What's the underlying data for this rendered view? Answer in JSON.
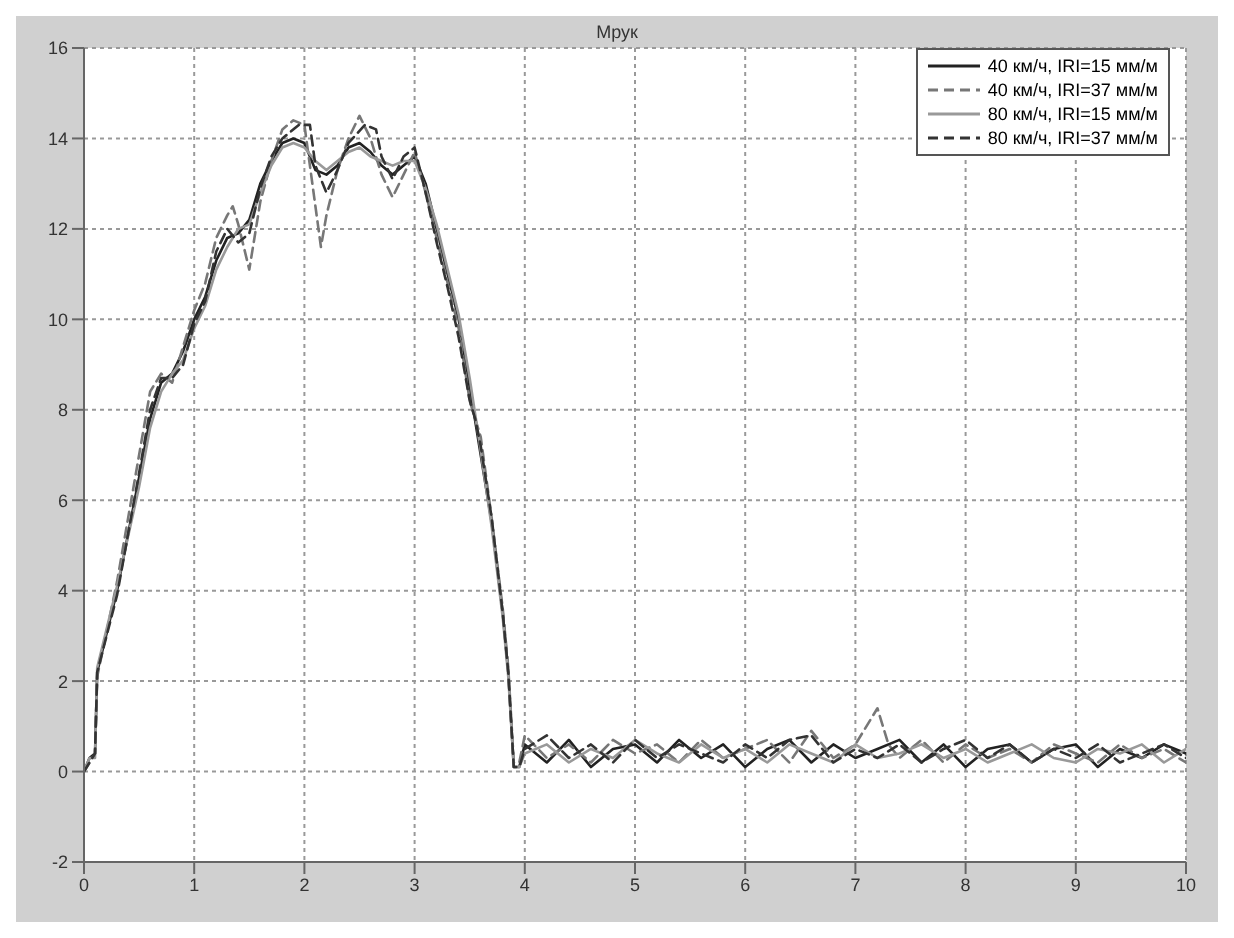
{
  "chart_data": {
    "type": "line",
    "title": "Мрук",
    "xlim": [
      0,
      10
    ],
    "ylim": [
      -2,
      16
    ],
    "xticks": [
      0,
      1,
      2,
      3,
      4,
      5,
      6,
      7,
      8,
      9,
      10
    ],
    "yticks": [
      -2,
      0,
      2,
      4,
      6,
      8,
      10,
      12,
      14,
      16
    ],
    "grid": true,
    "legend": "top right",
    "series": [
      {
        "name": "40 км/ч, IRI=15 мм/м",
        "color": "#222222",
        "line_style": "solid",
        "x": [
          0,
          0.05,
          0.1,
          0.12,
          0.3,
          0.5,
          0.6,
          0.7,
          0.8,
          0.9,
          1.0,
          1.1,
          1.2,
          1.3,
          1.4,
          1.5,
          1.6,
          1.7,
          1.8,
          1.9,
          2.0,
          2.1,
          2.2,
          2.3,
          2.4,
          2.5,
          2.6,
          2.7,
          2.8,
          2.9,
          3.0,
          3.1,
          3.2,
          3.3,
          3.4,
          3.5,
          3.6,
          3.7,
          3.8,
          3.85,
          3.9,
          3.95,
          4.0,
          4.2,
          4.4,
          4.6,
          4.8,
          5.0,
          5.2,
          5.4,
          5.6,
          5.8,
          6.0,
          6.2,
          6.4,
          6.6,
          6.8,
          7.0,
          7.2,
          7.4,
          7.6,
          7.8,
          8.0,
          8.2,
          8.4,
          8.6,
          8.8,
          9.0,
          9.2,
          9.4,
          9.6,
          9.8,
          10.0
        ],
        "values": [
          0,
          0.3,
          0.4,
          2.2,
          4,
          6.5,
          7.8,
          8.6,
          8.8,
          9.3,
          10,
          10.5,
          11.3,
          11.8,
          11.9,
          12.2,
          13,
          13.5,
          13.9,
          14,
          13.9,
          13.3,
          13.2,
          13.4,
          13.8,
          13.9,
          13.7,
          13.4,
          13.2,
          13.4,
          13.6,
          13,
          12,
          11,
          10,
          8.5,
          7,
          5.5,
          3.5,
          2.2,
          0.1,
          0.1,
          0.6,
          0.2,
          0.7,
          0.1,
          0.5,
          0.6,
          0.2,
          0.7,
          0.3,
          0.6,
          0.1,
          0.5,
          0.7,
          0.2,
          0.6,
          0.3,
          0.5,
          0.7,
          0.2,
          0.6,
          0.1,
          0.5,
          0.6,
          0.2,
          0.5,
          0.6,
          0.1,
          0.5,
          0.3,
          0.6,
          0.4
        ]
      },
      {
        "name": "40 км/ч, IRI=37 мм/м",
        "color": "#777777",
        "line_style": "dashed",
        "x": [
          0,
          0.05,
          0.1,
          0.12,
          0.3,
          0.5,
          0.6,
          0.7,
          0.8,
          0.9,
          1.0,
          1.1,
          1.2,
          1.3,
          1.35,
          1.4,
          1.5,
          1.6,
          1.7,
          1.8,
          1.9,
          2.0,
          2.1,
          2.15,
          2.2,
          2.3,
          2.4,
          2.5,
          2.6,
          2.7,
          2.8,
          2.9,
          3.0,
          3.1,
          3.2,
          3.3,
          3.4,
          3.5,
          3.6,
          3.7,
          3.8,
          3.85,
          3.9,
          3.95,
          4.0,
          4.2,
          4.4,
          4.6,
          4.8,
          5.0,
          5.2,
          5.4,
          5.6,
          5.8,
          6.0,
          6.2,
          6.4,
          6.6,
          6.8,
          7.0,
          7.1,
          7.2,
          7.3,
          7.4,
          7.6,
          7.8,
          8.0,
          8.2,
          8.4,
          8.6,
          8.8,
          9.0,
          9.2,
          9.4,
          9.6,
          9.8,
          10.0
        ],
        "values": [
          0,
          0.2,
          0.4,
          2.1,
          4.2,
          7,
          8.4,
          8.8,
          8.6,
          9.4,
          10.2,
          10.8,
          11.8,
          12.3,
          12.5,
          12.1,
          11.1,
          12.6,
          13.5,
          14.2,
          14.4,
          14.3,
          12.5,
          11.6,
          12.3,
          13.3,
          14,
          14.5,
          14,
          13.2,
          12.7,
          13.2,
          13.7,
          12.8,
          11.8,
          10.8,
          9.8,
          8.2,
          7.4,
          5.6,
          3.6,
          2.3,
          0.2,
          0.2,
          0.8,
          0.3,
          0.6,
          0.2,
          0.7,
          0.4,
          0.6,
          0.2,
          0.7,
          0.3,
          0.5,
          0.7,
          0.2,
          0.9,
          0.3,
          0.6,
          1.0,
          1.4,
          0.6,
          0.3,
          0.7,
          0.2,
          0.6,
          0.3,
          0.5,
          0.2,
          0.6,
          0.4,
          0.2,
          0.6,
          0.3,
          0.5,
          0.2
        ]
      },
      {
        "name": "80 км/ч, IRI=15 мм/м",
        "color": "#999999",
        "line_style": "solid",
        "x": [
          0,
          0.05,
          0.1,
          0.12,
          0.3,
          0.5,
          0.6,
          0.7,
          0.8,
          0.9,
          1.0,
          1.1,
          1.2,
          1.3,
          1.4,
          1.5,
          1.6,
          1.7,
          1.8,
          1.9,
          2.0,
          2.1,
          2.2,
          2.3,
          2.4,
          2.5,
          2.6,
          2.7,
          2.8,
          2.9,
          3.0,
          3.1,
          3.2,
          3.3,
          3.4,
          3.5,
          3.6,
          3.7,
          3.8,
          3.85,
          3.9,
          3.95,
          4.0,
          4.2,
          4.4,
          4.6,
          4.8,
          5.0,
          5.2,
          5.4,
          5.6,
          5.8,
          6.0,
          6.2,
          6.4,
          6.6,
          6.8,
          7.0,
          7.2,
          7.4,
          7.6,
          7.8,
          8.0,
          8.2,
          8.4,
          8.6,
          8.8,
          9.0,
          9.2,
          9.4,
          9.6,
          9.8,
          10.0
        ],
        "values": [
          0,
          0.3,
          0.3,
          2.3,
          4.1,
          6.3,
          7.6,
          8.4,
          8.8,
          9.1,
          9.8,
          10.3,
          11.1,
          11.6,
          12,
          12.1,
          12.8,
          13.4,
          13.8,
          13.9,
          13.8,
          13.5,
          13.3,
          13.5,
          13.7,
          13.8,
          13.6,
          13.5,
          13.4,
          13.5,
          13.5,
          12.9,
          12.1,
          11.1,
          10.1,
          8.7,
          7.1,
          5.4,
          3.4,
          2.1,
          0.1,
          0.1,
          0.4,
          0.6,
          0.2,
          0.5,
          0.3,
          0.7,
          0.4,
          0.2,
          0.6,
          0.3,
          0.5,
          0.2,
          0.6,
          0.4,
          0.2,
          0.6,
          0.3,
          0.4,
          0.6,
          0.3,
          0.5,
          0.2,
          0.4,
          0.6,
          0.3,
          0.2,
          0.5,
          0.4,
          0.6,
          0.2,
          0.5
        ]
      },
      {
        "name": "80 км/ч, IRI=37 мм/м",
        "color": "#333333",
        "line_style": "dashed",
        "x": [
          0,
          0.05,
          0.1,
          0.12,
          0.3,
          0.5,
          0.6,
          0.7,
          0.8,
          0.9,
          1.0,
          1.1,
          1.2,
          1.3,
          1.4,
          1.5,
          1.6,
          1.7,
          1.8,
          1.95,
          2.05,
          2.1,
          2.2,
          2.3,
          2.4,
          2.55,
          2.65,
          2.7,
          2.8,
          2.9,
          3.0,
          3.1,
          3.2,
          3.3,
          3.4,
          3.5,
          3.55,
          3.6,
          3.7,
          3.8,
          3.85,
          3.9,
          3.95,
          4.0,
          4.2,
          4.4,
          4.6,
          4.8,
          5.0,
          5.2,
          5.4,
          5.6,
          5.8,
          6.0,
          6.2,
          6.4,
          6.6,
          6.8,
          7.0,
          7.2,
          7.4,
          7.6,
          7.8,
          8.0,
          8.2,
          8.4,
          8.6,
          8.8,
          9.0,
          9.2,
          9.4,
          9.6,
          9.8,
          10.0
        ],
        "values": [
          0,
          0.2,
          0.4,
          2.2,
          3.9,
          6.6,
          8,
          8.7,
          8.7,
          9,
          9.9,
          10.4,
          11.5,
          12,
          11.7,
          11.9,
          12.9,
          13.6,
          14,
          14.3,
          14.3,
          13.4,
          12.8,
          13.3,
          13.9,
          14.3,
          14.2,
          13.6,
          13.1,
          13.6,
          13.8,
          12.8,
          11.7,
          10.7,
          9.6,
          8.2,
          7.8,
          7.2,
          5.6,
          3.5,
          2.2,
          0.1,
          0.1,
          0.5,
          0.8,
          0.3,
          0.6,
          0.2,
          0.7,
          0.3,
          0.6,
          0.4,
          0.2,
          0.6,
          0.3,
          0.7,
          0.8,
          0.2,
          0.5,
          0.3,
          0.6,
          0.2,
          0.5,
          0.7,
          0.3,
          0.6,
          0.2,
          0.5,
          0.3,
          0.6,
          0.2,
          0.4,
          0.6,
          0.3
        ]
      }
    ]
  }
}
